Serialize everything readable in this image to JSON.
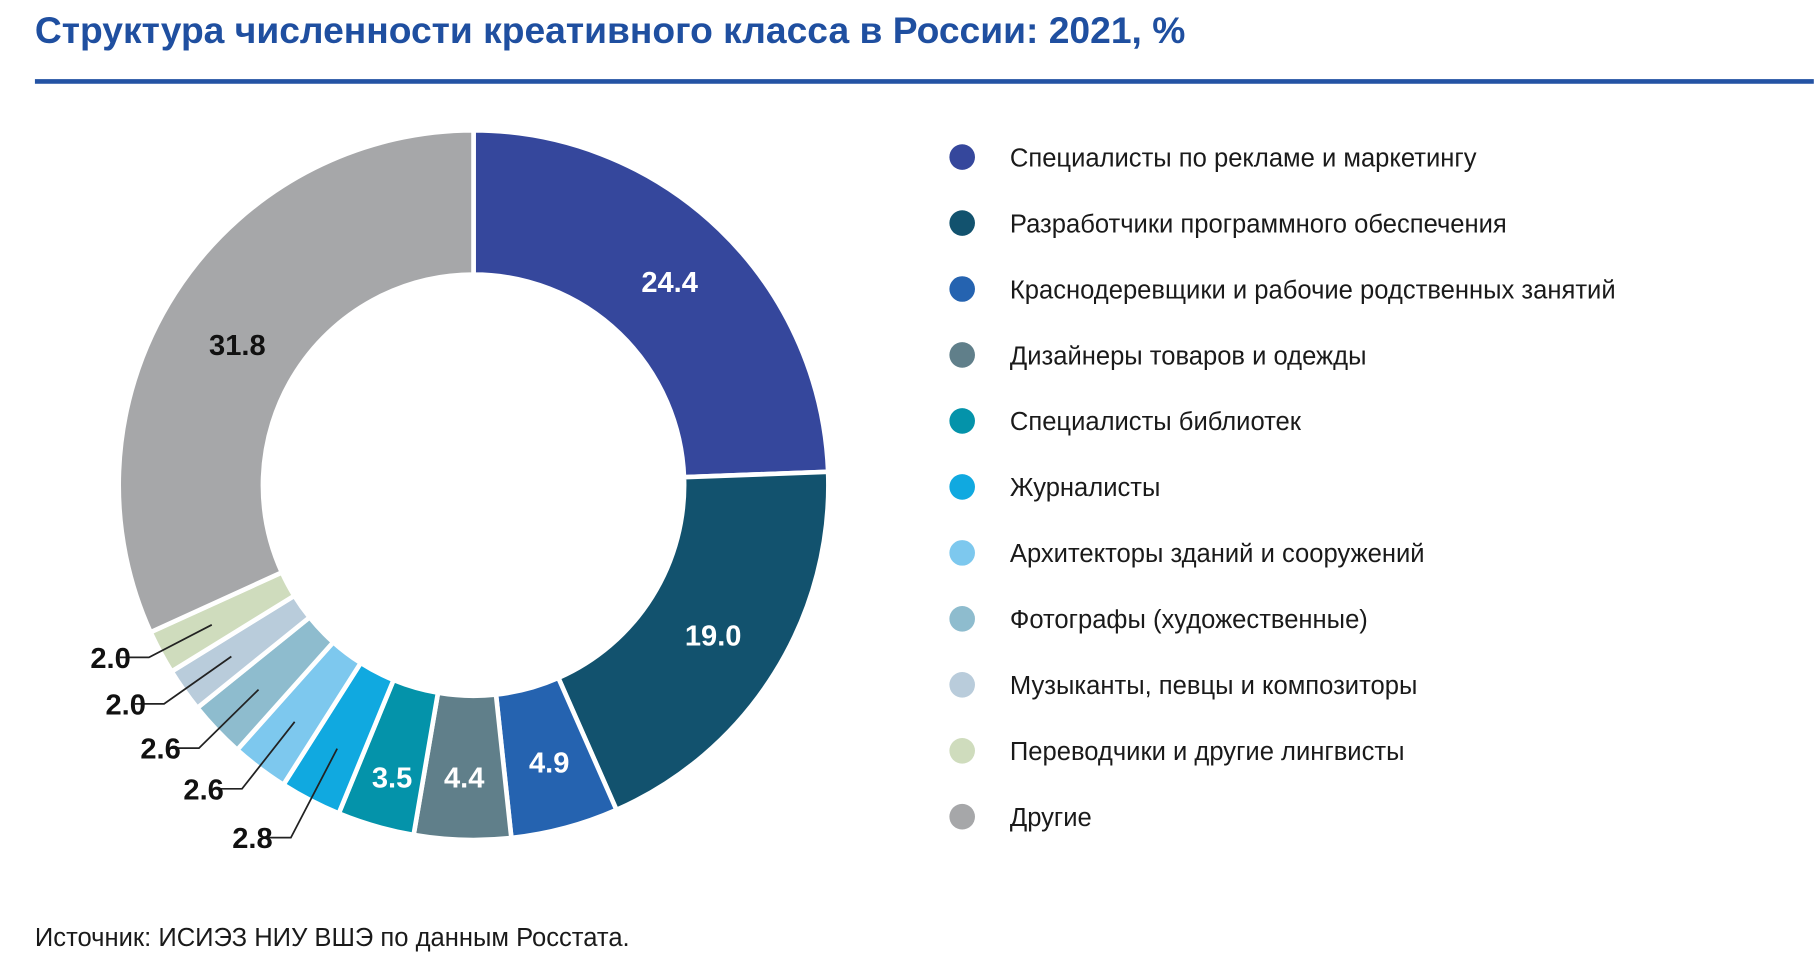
{
  "chart_data": {
    "type": "pie",
    "variant": "donut",
    "title": "Структура численности креативного класса в России: 2021, %",
    "source": "Источник: ИСИЭЗ НИУ ВШЭ по данным Росстата.",
    "legend_position": "right",
    "categories": [
      "Специалисты по рекламе и маркетингу",
      "Разработчики программного обеспечения",
      "Краснодеревщики и рабочие родственных занятий",
      "Дизайнеры товаров и одежды",
      "Специалисты библиотек",
      "Журналисты",
      "Архитекторы зданий и сооружений",
      "Фотографы (художественные)",
      "Музыканты, певцы и композиторы",
      "Переводчики и другие лингвисты",
      "Другие"
    ],
    "values": [
      24.4,
      19.0,
      4.9,
      4.4,
      3.5,
      2.8,
      2.6,
      2.6,
      2.0,
      2.0,
      31.8
    ],
    "labels": [
      "24.4",
      "19.0",
      "4.9",
      "4.4",
      "3.5",
      "2.8",
      "2.6",
      "2.6",
      "2.0",
      "2.0",
      "31.8"
    ],
    "colors": [
      "#35479c",
      "#12526e",
      "#2563b0",
      "#607f8a",
      "#0493aa",
      "#10a9e0",
      "#7dc8ee",
      "#8ebcce",
      "#b9ccdb",
      "#cfdcbd",
      "#a6a7a9"
    ],
    "accent": "#1f4fa0"
  }
}
